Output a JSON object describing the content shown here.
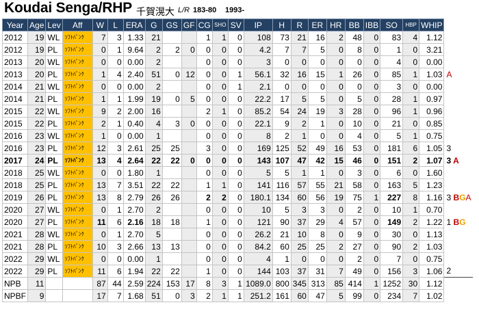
{
  "title": {
    "name": "Koudai Senga/RHP",
    "kanji": "千賀滉大",
    "bats_throws": "L/R",
    "height_weight": "183-80",
    "birth": "1993-"
  },
  "columns": [
    "Year",
    "Age",
    "Lev",
    "Aff",
    "W",
    "L",
    "ERA",
    "G",
    "GS",
    "GF",
    "CG",
    "SHO",
    "SV",
    "IP",
    "H",
    "R",
    "ER",
    "HR",
    "BB",
    "IBB",
    "SO",
    "HBP",
    "WHIP"
  ],
  "aff_label": "ｿﾌﾄﾊﾞﾝｸ",
  "rows": [
    {
      "cells": [
        "2012",
        "19",
        "WL",
        "",
        "7",
        "3",
        "1.33",
        "21",
        "",
        "",
        "1",
        "1",
        "0",
        "108",
        "73",
        "21",
        "16",
        "2",
        "48",
        "0",
        "83",
        "4",
        "1.12"
      ],
      "note": "",
      "bold": false
    },
    {
      "cells": [
        "2012",
        "19",
        "PL",
        "",
        "0",
        "1",
        "9.64",
        "2",
        "2",
        "0",
        "0",
        "0",
        "0",
        "4.2",
        "7",
        "7",
        "5",
        "0",
        "8",
        "0",
        "1",
        "0",
        "3.21"
      ],
      "note": "",
      "bold": false
    },
    {
      "cells": [
        "2013",
        "20",
        "WL",
        "",
        "0",
        "0",
        "0.00",
        "2",
        "",
        "",
        "0",
        "0",
        "0",
        "3",
        "0",
        "0",
        "0",
        "0",
        "0",
        "0",
        "4",
        "0",
        "0.00"
      ],
      "note": "",
      "bold": false
    },
    {
      "cells": [
        "2013",
        "20",
        "PL",
        "",
        "1",
        "4",
        "2.40",
        "51",
        "0",
        "12",
        "0",
        "0",
        "1",
        "56.1",
        "32",
        "16",
        "15",
        "1",
        "26",
        "0",
        "85",
        "1",
        "1.03"
      ],
      "note": "A",
      "bold": false
    },
    {
      "cells": [
        "2014",
        "21",
        "WL",
        "",
        "0",
        "0",
        "0.00",
        "2",
        "",
        "",
        "0",
        "0",
        "1",
        "2.1",
        "0",
        "0",
        "0",
        "0",
        "0",
        "0",
        "3",
        "0",
        "0.00"
      ],
      "note": "",
      "bold": false
    },
    {
      "cells": [
        "2014",
        "21",
        "PL",
        "",
        "1",
        "1",
        "1.99",
        "19",
        "0",
        "5",
        "0",
        "0",
        "0",
        "22.2",
        "17",
        "5",
        "5",
        "0",
        "5",
        "0",
        "28",
        "1",
        "0.97"
      ],
      "note": "",
      "bold": false
    },
    {
      "cells": [
        "2015",
        "22",
        "WL",
        "",
        "9",
        "2",
        "2.00",
        "16",
        "",
        "",
        "2",
        "1",
        "0",
        "85.2",
        "54",
        "24",
        "19",
        "3",
        "28",
        "0",
        "96",
        "1",
        "0.96"
      ],
      "note": "",
      "bold": false
    },
    {
      "cells": [
        "2015",
        "22",
        "PL",
        "",
        "2",
        "1",
        "0.40",
        "4",
        "3",
        "0",
        "0",
        "0",
        "0",
        "22.1",
        "9",
        "2",
        "1",
        "0",
        "10",
        "0",
        "21",
        "0",
        "0.85"
      ],
      "note": "",
      "bold": false
    },
    {
      "cells": [
        "2016",
        "23",
        "WL",
        "",
        "1",
        "0",
        "0.00",
        "1",
        "",
        "",
        "0",
        "0",
        "0",
        "8",
        "2",
        "1",
        "0",
        "0",
        "4",
        "0",
        "5",
        "1",
        "0.75"
      ],
      "note": "",
      "bold": false
    },
    {
      "cells": [
        "2016",
        "23",
        "PL",
        "",
        "12",
        "3",
        "2.61",
        "25",
        "25",
        "",
        "3",
        "0",
        "0",
        "169",
        "125",
        "52",
        "49",
        "16",
        "53",
        "0",
        "181",
        "6",
        "1.05"
      ],
      "note": "3",
      "bold": false
    },
    {
      "cells": [
        "2017",
        "24",
        "PL",
        "",
        "13",
        "4",
        "2.64",
        "22",
        "22",
        "0",
        "0",
        "0",
        "0",
        "143",
        "107",
        "47",
        "42",
        "15",
        "46",
        "0",
        "151",
        "2",
        "1.07"
      ],
      "note": "3 A",
      "bold": true
    },
    {
      "cells": [
        "2018",
        "25",
        "WL",
        "",
        "0",
        "0",
        "1.80",
        "1",
        "",
        "",
        "0",
        "0",
        "0",
        "5",
        "5",
        "1",
        "1",
        "0",
        "3",
        "0",
        "6",
        "0",
        "1.60"
      ],
      "note": "",
      "bold": false
    },
    {
      "cells": [
        "2018",
        "25",
        "PL",
        "",
        "13",
        "7",
        "3.51",
        "22",
        "22",
        "",
        "1",
        "1",
        "0",
        "141",
        "116",
        "57",
        "55",
        "21",
        "58",
        "0",
        "163",
        "5",
        "1.23"
      ],
      "note": "",
      "bold": false
    },
    {
      "cells": [
        "2019",
        "26",
        "PL",
        "",
        "13",
        "8",
        "2.79",
        "26",
        "26",
        "",
        "2",
        "2",
        "0",
        "180.1",
        "134",
        "60",
        "56",
        "19",
        "75",
        "1",
        "227",
        "8",
        "1.16"
      ],
      "note": "3 BGA",
      "bold": false
    },
    {
      "cells": [
        "2020",
        "27",
        "WL",
        "",
        "0",
        "1",
        "2.70",
        "2",
        "",
        "",
        "0",
        "0",
        "0",
        "10",
        "5",
        "3",
        "3",
        "0",
        "2",
        "0",
        "10",
        "1",
        "0.70"
      ],
      "note": "",
      "bold": false
    },
    {
      "cells": [
        "2020",
        "27",
        "PL",
        "",
        "11",
        "6",
        "2.16",
        "18",
        "18",
        "",
        "1",
        "0",
        "0",
        "121",
        "90",
        "37",
        "29",
        "4",
        "57",
        "0",
        "149",
        "2",
        "1.22"
      ],
      "note": "1 BG",
      "bold": false
    },
    {
      "cells": [
        "2021",
        "28",
        "WL",
        "",
        "0",
        "1",
        "2.70",
        "5",
        "",
        "",
        "0",
        "0",
        "0",
        "26.2",
        "21",
        "10",
        "8",
        "0",
        "9",
        "0",
        "30",
        "0",
        "1.13"
      ],
      "note": "",
      "bold": false
    },
    {
      "cells": [
        "2021",
        "28",
        "PL",
        "",
        "10",
        "3",
        "2.66",
        "13",
        "13",
        "",
        "0",
        "0",
        "0",
        "84.2",
        "60",
        "25",
        "25",
        "2",
        "27",
        "0",
        "90",
        "2",
        "1.03"
      ],
      "note": "",
      "bold": false
    },
    {
      "cells": [
        "2022",
        "29",
        "WL",
        "",
        "0",
        "0",
        "0.00",
        "1",
        "",
        "",
        "0",
        "0",
        "0",
        "4",
        "1",
        "0",
        "0",
        "0",
        "2",
        "0",
        "7",
        "0",
        "0.75"
      ],
      "note": "",
      "bold": false
    },
    {
      "cells": [
        "2022",
        "29",
        "PL",
        "",
        "11",
        "6",
        "1.94",
        "22",
        "22",
        "",
        "1",
        "0",
        "0",
        "144",
        "103",
        "37",
        "31",
        "7",
        "49",
        "0",
        "156",
        "3",
        "1.06"
      ],
      "note": "2",
      "bold": false
    }
  ],
  "totals": [
    {
      "cells": [
        "NPB",
        "11",
        "",
        "",
        "87",
        "44",
        "2.59",
        "224",
        "153",
        "17",
        "8",
        "3",
        "1",
        "1089.0",
        "800",
        "345",
        "313",
        "85",
        "414",
        "1",
        "1252",
        "30",
        "1.12"
      ]
    },
    {
      "cells": [
        "NPBF",
        "9",
        "",
        "",
        "17",
        "7",
        "1.68",
        "51",
        "0",
        "3",
        "2",
        "1",
        "1",
        "251.2",
        "161",
        "60",
        "47",
        "5",
        "99",
        "0",
        "234",
        "7",
        "1.02"
      ]
    }
  ]
}
